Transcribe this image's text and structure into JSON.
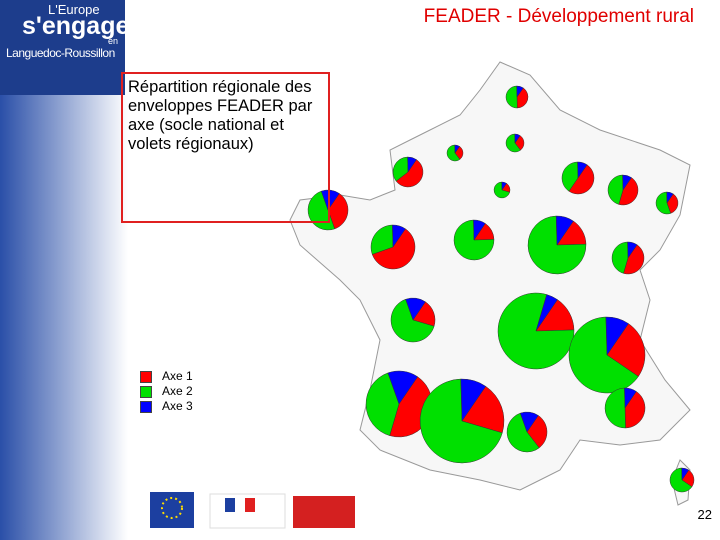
{
  "header": {
    "logo": [
      "L'Europe",
      "s'engage",
      "en",
      "Languedoc-Roussillon"
    ],
    "title": "FEADER - Développement rural"
  },
  "caption": "Répartition régionale des enveloppes FEADER par axe (socle national et volets régionaux)",
  "chart_data": {
    "type": "pie-map",
    "series": [
      {
        "name": "Axe 1",
        "color": "#ff0000",
        "values": [
          40,
          30,
          30,
          55,
          50,
          20,
          45,
          35,
          35,
          15,
          15,
          60,
          45,
          20,
          15,
          25,
          45,
          20,
          30,
          40,
          25
        ]
      },
      {
        "name": "Axe 2",
        "color": "#00e000",
        "values": [
          50,
          60,
          60,
          35,
          40,
          70,
          45,
          55,
          50,
          75,
          75,
          30,
          45,
          65,
          80,
          65,
          40,
          70,
          55,
          50,
          65
        ]
      },
      {
        "name": "Axe 3",
        "color": "#0000ff",
        "values": [
          10,
          10,
          10,
          10,
          10,
          10,
          10,
          10,
          15,
          10,
          10,
          10,
          10,
          15,
          5,
          10,
          15,
          10,
          15,
          10,
          10
        ]
      }
    ]
  },
  "page_number": "22"
}
